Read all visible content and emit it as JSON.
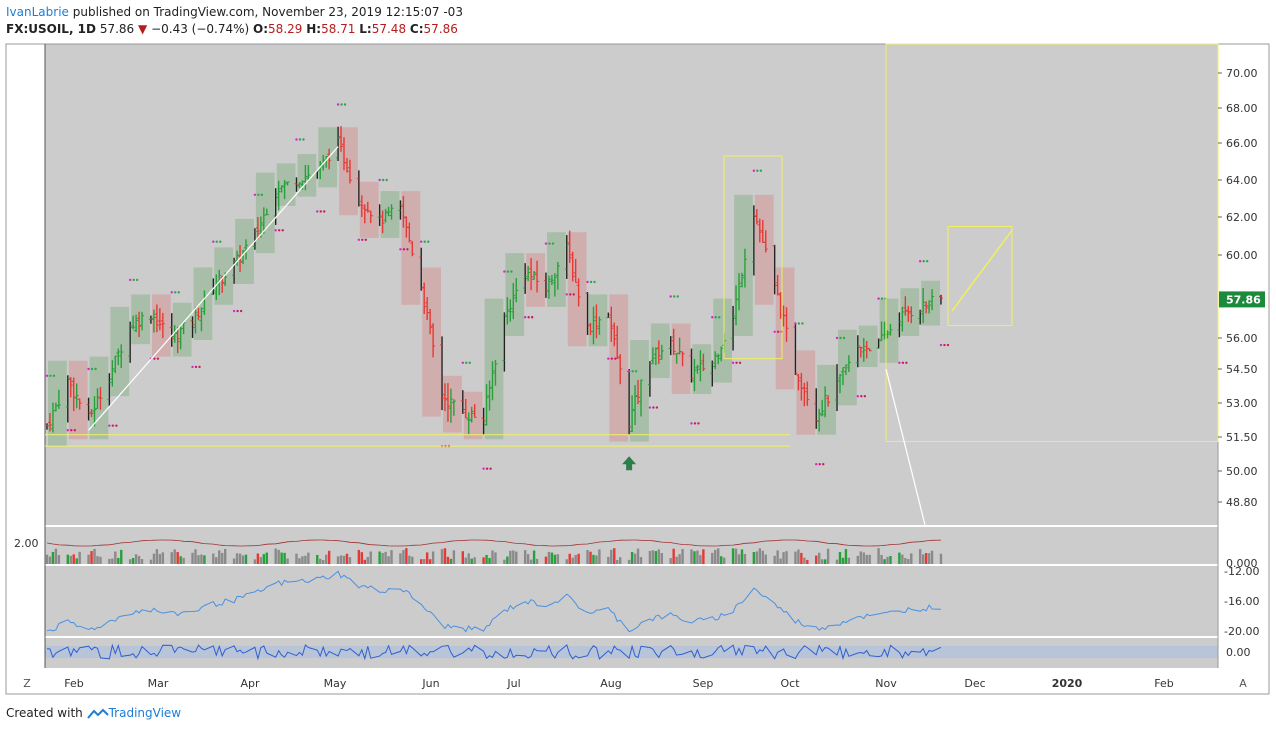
{
  "header": {
    "author": "IvanLabrie",
    "published_text": "published on TradingView.com, November 23, 2019 12:15:07 -03",
    "symbol": "FX:USOIL, 1D",
    "last": "57.86",
    "change": "−0.43 (−0.74%)",
    "o_label": "O:",
    "o_val": "58.29",
    "h_label": "H:",
    "h_val": "58.71",
    "l_label": "L:",
    "l_val": "57.48",
    "c_label": "C:",
    "c_val": "57.86"
  },
  "footer": {
    "created_with": "Created with",
    "brand": "TradingView"
  },
  "buttons": {
    "z_label": "Z",
    "a_label": "A"
  },
  "colors": {
    "bg": "#cccccc",
    "up": "#27a03a",
    "down": "#e53935",
    "neutral": "#222222",
    "yellow": "#f0f060",
    "blue": "#3a86ff",
    "magenta": "#e020d0",
    "price_tag": "#1b8a3a"
  },
  "chart_data": {
    "type": "candlestick",
    "price_axis": {
      "ticks": [
        "70.00",
        "68.00",
        "66.00",
        "64.00",
        "62.00",
        "60.00",
        "56.00",
        "54.50",
        "53.00",
        "51.50",
        "50.00",
        "48.80"
      ],
      "tick_values": [
        70,
        68,
        66,
        64,
        62,
        60,
        56,
        54.5,
        53,
        51.5,
        50,
        48.8
      ],
      "range": [
        48,
        71.5
      ],
      "last_price_label": "57.86"
    },
    "time_axis": {
      "labels": [
        "Feb",
        "Mar",
        "Apr",
        "May",
        "Jun",
        "Jul",
        "Aug",
        "Sep",
        "Oct",
        "Nov",
        "Dec",
        "2020",
        "Feb"
      ]
    },
    "volume_pane": {
      "label": "2.00",
      "zero_label": "0.000"
    },
    "indicator_pane_1": {
      "ticks": [
        "-12.00",
        "-16.00",
        "-20.00"
      ],
      "tick_values": [
        -12,
        -16,
        -20
      ]
    },
    "indicator_pane_2": {
      "ticks": [
        "0.00"
      ],
      "tick_values": [
        0
      ]
    },
    "price_path": [
      [
        "Jan 21",
        52.0
      ],
      [
        "Jan 28",
        54.0
      ],
      [
        "Feb 4",
        52.3
      ],
      [
        "Feb 11",
        54.2
      ],
      [
        "Feb 18",
        56.6
      ],
      [
        "Feb 25",
        57.2
      ],
      [
        "Mar 4",
        56.0
      ],
      [
        "Mar 11",
        56.8
      ],
      [
        "Mar 18",
        58.5
      ],
      [
        "Mar 25",
        59.5
      ],
      [
        "Apr 1",
        61.0
      ],
      [
        "Apr 8",
        63.5
      ],
      [
        "Apr 15",
        64.0
      ],
      [
        "Apr 22",
        64.5
      ],
      [
        "Apr 29",
        66.0
      ],
      [
        "May 6",
        63.0
      ],
      [
        "May 13",
        61.8
      ],
      [
        "May 20",
        62.5
      ],
      [
        "May 27",
        58.5
      ],
      [
        "Jun 3",
        53.3
      ],
      [
        "Jun 10",
        52.6
      ],
      [
        "Jun 17",
        52.3
      ],
      [
        "Jun 24",
        57.0
      ],
      [
        "Jul 1",
        59.2
      ],
      [
        "Jul 8",
        58.4
      ],
      [
        "Jul 15",
        60.3
      ],
      [
        "Jul 22",
        56.5
      ],
      [
        "Jul 29",
        57.2
      ],
      [
        "Aug 5",
        52.2
      ],
      [
        "Aug 12",
        55.0
      ],
      [
        "Aug 19",
        55.8
      ],
      [
        "Aug 26",
        54.3
      ],
      [
        "Sep 2",
        54.8
      ],
      [
        "Sep 9",
        57.0
      ],
      [
        "Sep 16",
        62.3
      ],
      [
        "Sep 23",
        58.5
      ],
      [
        "Sep 30",
        54.5
      ],
      [
        "Oct 7",
        52.5
      ],
      [
        "Oct 14",
        53.8
      ],
      [
        "Oct 21",
        55.5
      ],
      [
        "Oct 28",
        55.7
      ],
      [
        "Nov 4",
        57.0
      ],
      [
        "Nov 11",
        57.5
      ],
      [
        "Nov 18",
        57.86
      ]
    ]
  }
}
